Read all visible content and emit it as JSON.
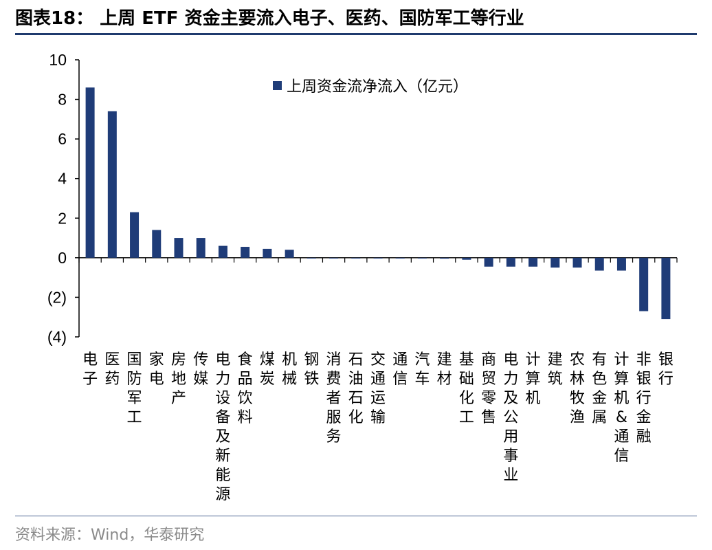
{
  "header": {
    "title": "图表18：  上周 ETF 资金主要流入电子、医药、国防军工等行业"
  },
  "footer": {
    "source": "资料来源：Wind，华泰研究"
  },
  "colors": {
    "bar": "#1f3c78",
    "axis": "#000000",
    "rule": "#1f3a6d"
  },
  "chart_data": {
    "type": "bar",
    "legend_position": "top-center",
    "grid": false,
    "ylim": [
      -4,
      10
    ],
    "yticks": [
      {
        "value": 10,
        "label": "10"
      },
      {
        "value": 8,
        "label": "8"
      },
      {
        "value": 6,
        "label": "6"
      },
      {
        "value": 4,
        "label": "4"
      },
      {
        "value": 2,
        "label": "2"
      },
      {
        "value": 0,
        "label": "0"
      },
      {
        "value": -2,
        "label": "(2)"
      },
      {
        "value": -4,
        "label": "(4)"
      }
    ],
    "categories": [
      "电子",
      "医药",
      "国防军工",
      "家电",
      "房地产",
      "传媒",
      "电力设备及新能源",
      "食品饮料",
      "煤炭",
      "机械",
      "钢铁",
      "消费者服务",
      "石油石化",
      "交通运输",
      "通信",
      "汽车",
      "建材",
      "基础化工",
      "商贸零售",
      "电力及公用事业",
      "计算机",
      "建筑",
      "农林牧渔",
      "有色金属",
      "计算机&通信",
      "非银行金融",
      "银行"
    ],
    "series": [
      {
        "name": "上周资金流净流入（亿元）",
        "values": [
          8.6,
          7.4,
          2.3,
          1.4,
          1.0,
          1.0,
          0.6,
          0.55,
          0.45,
          0.4,
          0.0,
          0.0,
          0.0,
          0.0,
          0.0,
          0.0,
          -0.05,
          -0.1,
          -0.45,
          -0.45,
          -0.45,
          -0.5,
          -0.5,
          -0.65,
          -0.65,
          -2.7,
          -3.1
        ]
      }
    ]
  }
}
